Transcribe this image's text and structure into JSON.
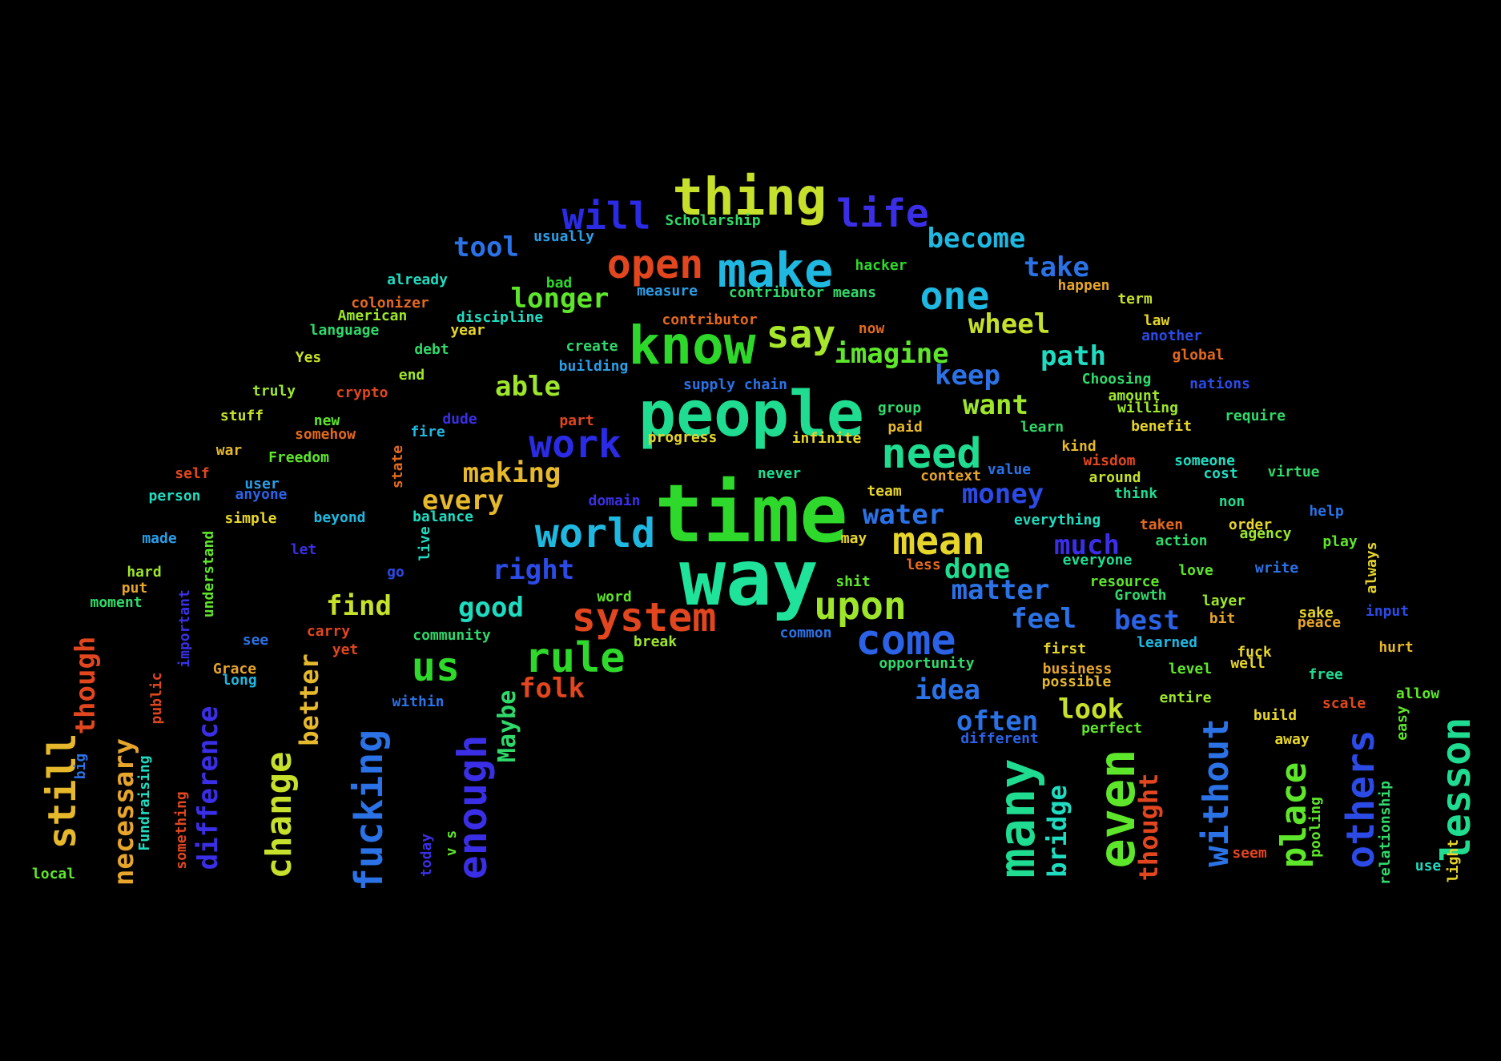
{
  "background": "#000000",
  "words": [
    {
      "text": "time",
      "color": "#2fd92b"
    },
    {
      "text": "way",
      "color": "#1fe39a"
    },
    {
      "text": "people",
      "color": "#1fdc90"
    },
    {
      "text": "know",
      "color": "#2ed82a"
    },
    {
      "text": "make",
      "color": "#1fb8e0"
    },
    {
      "text": "thing",
      "color": "#c6e02b"
    },
    {
      "text": "life",
      "color": "#3a2fe6"
    },
    {
      "text": "will",
      "color": "#2b2be6"
    },
    {
      "text": "open",
      "color": "#e2461f"
    },
    {
      "text": "say",
      "color": "#a8e62b"
    },
    {
      "text": "one",
      "color": "#1fb8e0"
    },
    {
      "text": "need",
      "color": "#1fdc90"
    },
    {
      "text": "work",
      "color": "#2b2be6"
    },
    {
      "text": "world",
      "color": "#1fb8e0"
    },
    {
      "text": "mean",
      "color": "#e6d52b"
    },
    {
      "text": "system",
      "color": "#e2461f"
    },
    {
      "text": "upon",
      "color": "#9de62b"
    },
    {
      "text": "come",
      "color": "#2b62e6"
    },
    {
      "text": "rule",
      "color": "#2fd92b"
    },
    {
      "text": "us",
      "color": "#2fd92b"
    },
    {
      "text": "many",
      "color": "#1fdc90"
    },
    {
      "text": "even",
      "color": "#5ee62b"
    },
    {
      "text": "without",
      "color": "#2b72e6"
    },
    {
      "text": "place",
      "color": "#5ee62b"
    },
    {
      "text": "others",
      "color": "#2b4ae6"
    },
    {
      "text": "lesson",
      "color": "#1fdc90"
    },
    {
      "text": "still",
      "color": "#e6b82b"
    },
    {
      "text": "change",
      "color": "#c6e02b"
    },
    {
      "text": "fucking",
      "color": "#2b72e6"
    },
    {
      "text": "enough",
      "color": "#3a2fe6"
    },
    {
      "text": "bridge",
      "color": "#1fdcc0"
    },
    {
      "text": "thought",
      "color": "#e2461f"
    },
    {
      "text": "difference",
      "color": "#3a2fe6"
    },
    {
      "text": "necessary",
      "color": "#e6a52b"
    },
    {
      "text": "though",
      "color": "#e2461f"
    },
    {
      "text": "better",
      "color": "#e6b82b"
    },
    {
      "text": "Maybe",
      "color": "#2fd96a"
    },
    {
      "text": "become",
      "color": "#1fb8e0"
    },
    {
      "text": "take",
      "color": "#2b72e6"
    },
    {
      "text": "tool",
      "color": "#2b72e6"
    },
    {
      "text": "longer",
      "color": "#5ee62b"
    },
    {
      "text": "wheel",
      "color": "#c6e02b"
    },
    {
      "text": "imagine",
      "color": "#5ee62b"
    },
    {
      "text": "path",
      "color": "#1fdcc0"
    },
    {
      "text": "keep",
      "color": "#2b72e6"
    },
    {
      "text": "able",
      "color": "#9de62b"
    },
    {
      "text": "want",
      "color": "#9de62b"
    },
    {
      "text": "making",
      "color": "#e6b82b"
    },
    {
      "text": "every",
      "color": "#e6b82b"
    },
    {
      "text": "money",
      "color": "#2b4ae6"
    },
    {
      "text": "water",
      "color": "#2b72e6"
    },
    {
      "text": "much",
      "color": "#3a2fe6"
    },
    {
      "text": "done",
      "color": "#1fdc90"
    },
    {
      "text": "right",
      "color": "#2b4ae6"
    },
    {
      "text": "matter",
      "color": "#2b72e6"
    },
    {
      "text": "find",
      "color": "#c6e02b"
    },
    {
      "text": "good",
      "color": "#1fdcc0"
    },
    {
      "text": "feel",
      "color": "#2b72e6"
    },
    {
      "text": "best",
      "color": "#2b62e6"
    },
    {
      "text": "folk",
      "color": "#e2461f"
    },
    {
      "text": "idea",
      "color": "#2b72e6"
    },
    {
      "text": "often",
      "color": "#2b72e6"
    },
    {
      "text": "look",
      "color": "#c6e02b"
    },
    {
      "text": "Scholarship",
      "color": "#2fd96a"
    },
    {
      "text": "usually",
      "color": "#2b9ee6"
    },
    {
      "text": "hacker",
      "color": "#2fd92b"
    },
    {
      "text": "already",
      "color": "#1fdcc0"
    },
    {
      "text": "bad",
      "color": "#2fd92b"
    },
    {
      "text": "measure",
      "color": "#2b9ee6"
    },
    {
      "text": "contributor means",
      "color": "#2fd96a"
    },
    {
      "text": "happen",
      "color": "#e6a52b"
    },
    {
      "text": "term",
      "color": "#c6e02b"
    },
    {
      "text": "colonizer",
      "color": "#e2691f"
    },
    {
      "text": "American",
      "color": "#9de62b"
    },
    {
      "text": "discipline",
      "color": "#1fdcc0"
    },
    {
      "text": "contributor",
      "color": "#e2691f"
    },
    {
      "text": "law",
      "color": "#e6d52b"
    },
    {
      "text": "language",
      "color": "#2fd96a"
    },
    {
      "text": "year",
      "color": "#e6d52b"
    },
    {
      "text": "now",
      "color": "#e2691f"
    },
    {
      "text": "another",
      "color": "#2b4ae6"
    },
    {
      "text": "debt",
      "color": "#2fd96a"
    },
    {
      "text": "create",
      "color": "#2fd96a"
    },
    {
      "text": "global",
      "color": "#e2691f"
    },
    {
      "text": "Yes",
      "color": "#c6e02b"
    },
    {
      "text": "building",
      "color": "#2b9ee6"
    },
    {
      "text": "end",
      "color": "#9de62b"
    },
    {
      "text": "Choosing",
      "color": "#2fd96a"
    },
    {
      "text": "supply chain",
      "color": "#2b72e6"
    },
    {
      "text": "nations",
      "color": "#2b4ae6"
    },
    {
      "text": "amount",
      "color": "#9de62b"
    },
    {
      "text": "truly",
      "color": "#9de62b"
    },
    {
      "text": "crypto",
      "color": "#e2461f"
    },
    {
      "text": "group",
      "color": "#2fd96a"
    },
    {
      "text": "willing",
      "color": "#9de62b"
    },
    {
      "text": "stuff",
      "color": "#c6e02b"
    },
    {
      "text": "require",
      "color": "#2fd96a"
    },
    {
      "text": "new",
      "color": "#5ee62b"
    },
    {
      "text": "dude",
      "color": "#3a2fe6"
    },
    {
      "text": "part",
      "color": "#e2461f"
    },
    {
      "text": "paid",
      "color": "#e6b82b"
    },
    {
      "text": "learn",
      "color": "#2fd96a"
    },
    {
      "text": "benefit",
      "color": "#e6d52b"
    },
    {
      "text": "somehow",
      "color": "#e2691f"
    },
    {
      "text": "fire",
      "color": "#1fb8e0"
    },
    {
      "text": "progress",
      "color": "#e6d52b"
    },
    {
      "text": "infinite",
      "color": "#e6d52b"
    },
    {
      "text": "kind",
      "color": "#e6b82b"
    },
    {
      "text": "war",
      "color": "#e6b82b"
    },
    {
      "text": "Freedom",
      "color": "#5ee62b"
    },
    {
      "text": "wisdom",
      "color": "#e2461f"
    },
    {
      "text": "someone",
      "color": "#1fdcc0"
    },
    {
      "text": "state",
      "color": "#e2691f"
    },
    {
      "text": "value",
      "color": "#2b72e6"
    },
    {
      "text": "cost",
      "color": "#1fdcc0"
    },
    {
      "text": "virtue",
      "color": "#2fd96a"
    },
    {
      "text": "self",
      "color": "#e2461f"
    },
    {
      "text": "never",
      "color": "#1fdc90"
    },
    {
      "text": "context",
      "color": "#e6a52b"
    },
    {
      "text": "around",
      "color": "#c6e02b"
    },
    {
      "text": "user",
      "color": "#2b9ee6"
    },
    {
      "text": "anyone",
      "color": "#2b62e6"
    },
    {
      "text": "person",
      "color": "#1fdcc0"
    },
    {
      "text": "domain",
      "color": "#3a2fe6"
    },
    {
      "text": "team",
      "color": "#e6d52b"
    },
    {
      "text": "think",
      "color": "#1fdc90"
    },
    {
      "text": "non",
      "color": "#1fdc90"
    },
    {
      "text": "help",
      "color": "#2b72e6"
    },
    {
      "text": "simple",
      "color": "#e6d52b"
    },
    {
      "text": "beyond",
      "color": "#1fb8e0"
    },
    {
      "text": "balance",
      "color": "#1fdcc0"
    },
    {
      "text": "everything",
      "color": "#1fdcc0"
    },
    {
      "text": "taken",
      "color": "#e2691f"
    },
    {
      "text": "order",
      "color": "#e6d52b"
    },
    {
      "text": "agency",
      "color": "#9de62b"
    },
    {
      "text": "made",
      "color": "#2b9ee6"
    },
    {
      "text": "live",
      "color": "#1fdcc0"
    },
    {
      "text": "let",
      "color": "#3a2fe6"
    },
    {
      "text": "may",
      "color": "#e6d52b"
    },
    {
      "text": "action",
      "color": "#2fd96a"
    },
    {
      "text": "play",
      "color": "#5ee62b"
    },
    {
      "text": "understand",
      "color": "#5ee62b"
    },
    {
      "text": "less",
      "color": "#e2691f"
    },
    {
      "text": "everyone",
      "color": "#1fdc90"
    },
    {
      "text": "always",
      "color": "#e6d52b"
    },
    {
      "text": "hard",
      "color": "#9de62b"
    },
    {
      "text": "go",
      "color": "#2b4ae6"
    },
    {
      "text": "love",
      "color": "#5ee62b"
    },
    {
      "text": "write",
      "color": "#2b72e6"
    },
    {
      "text": "put",
      "color": "#e6a52b"
    },
    {
      "text": "word",
      "color": "#5ee62b"
    },
    {
      "text": "shit",
      "color": "#5ee62b"
    },
    {
      "text": "resource",
      "color": "#5ee62b"
    },
    {
      "text": "Growth",
      "color": "#2fd96a"
    },
    {
      "text": "moment",
      "color": "#2fd96a"
    },
    {
      "text": "layer",
      "color": "#9de62b"
    },
    {
      "text": "important",
      "color": "#3a2fe6"
    },
    {
      "text": "input",
      "color": "#2b4ae6"
    },
    {
      "text": "sake",
      "color": "#e6d52b"
    },
    {
      "text": "bit",
      "color": "#e6a52b"
    },
    {
      "text": "peace",
      "color": "#e6a52b"
    },
    {
      "text": "community",
      "color": "#2fd96a"
    },
    {
      "text": "common",
      "color": "#2b72e6"
    },
    {
      "text": "see",
      "color": "#2b72e6"
    },
    {
      "text": "carry",
      "color": "#e2461f"
    },
    {
      "text": "break",
      "color": "#9de62b"
    },
    {
      "text": "learned",
      "color": "#1fb8e0"
    },
    {
      "text": "first",
      "color": "#e6d52b"
    },
    {
      "text": "yet",
      "color": "#e2461f"
    },
    {
      "text": "fuck",
      "color": "#e6d52b"
    },
    {
      "text": "hurt",
      "color": "#e6b82b"
    },
    {
      "text": "well",
      "color": "#e6d52b"
    },
    {
      "text": "opportunity",
      "color": "#2fd96a"
    },
    {
      "text": "Grace",
      "color": "#e6a52b"
    },
    {
      "text": "business",
      "color": "#e6a52b"
    },
    {
      "text": "level",
      "color": "#5ee62b"
    },
    {
      "text": "free",
      "color": "#1fdc90"
    },
    {
      "text": "long",
      "color": "#1fb8e0"
    },
    {
      "text": "possible",
      "color": "#e6b82b"
    },
    {
      "text": "public",
      "color": "#e2461f"
    },
    {
      "text": "allow",
      "color": "#5ee62b"
    },
    {
      "text": "within",
      "color": "#2b72e6"
    },
    {
      "text": "entire",
      "color": "#9de62b"
    },
    {
      "text": "scale",
      "color": "#e2461f"
    },
    {
      "text": "build",
      "color": "#e6d52b"
    },
    {
      "text": "easy",
      "color": "#5ee62b"
    },
    {
      "text": "perfect",
      "color": "#5ee62b"
    },
    {
      "text": "different",
      "color": "#2b62e6"
    },
    {
      "text": "away",
      "color": "#e6d52b"
    },
    {
      "text": "big",
      "color": "#2b72e6"
    },
    {
      "text": "Fundraising",
      "color": "#1fdcc0"
    },
    {
      "text": "v s",
      "color": "#5ee62b"
    },
    {
      "text": "pooling",
      "color": "#5ee62b"
    },
    {
      "text": "relationship",
      "color": "#2fd96a"
    },
    {
      "text": "something",
      "color": "#e2461f"
    },
    {
      "text": "today",
      "color": "#3a2fe6"
    },
    {
      "text": "seem",
      "color": "#e2461f"
    },
    {
      "text": "use",
      "color": "#1fdcc0"
    },
    {
      "text": "light",
      "color": "#e6d52b"
    },
    {
      "text": "local",
      "color": "#5ee62b"
    }
  ]
}
